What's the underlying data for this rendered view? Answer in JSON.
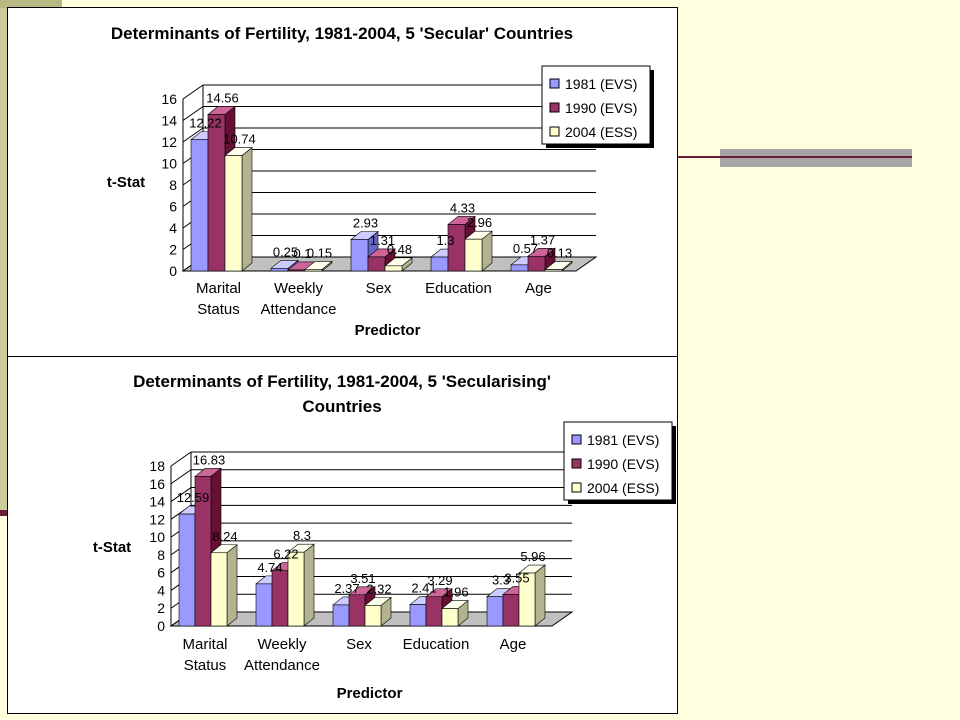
{
  "colors": {
    "series_1981": "#9999ff",
    "series_1990": "#993366",
    "series_2004": "#ffffcc",
    "gridline": "#000000",
    "wall_side": "#808080",
    "accent_line": "#6b1d3a",
    "accent_bar": "#a6a6a6",
    "left_strip": "#cccc99",
    "slide_background": "#ffffe0"
  },
  "chart_data": [
    {
      "type": "bar",
      "title": "Determinants of Fertility, 1981-2004, 5 'Secular' Countries",
      "title_lines": [
        "Determinants of Fertility, 1981-2004, 5 'Secular' Countries"
      ],
      "xlabel": "Predictor",
      "ylabel": "t-Stat",
      "categories": [
        "Marital Status",
        "Weekly Attendance",
        "Sex",
        "Education",
        "Age"
      ],
      "category_lines": [
        [
          "Marital",
          "Status"
        ],
        [
          "Weekly",
          "Attendance"
        ],
        [
          "Sex"
        ],
        [
          "Education"
        ],
        [
          "Age"
        ]
      ],
      "series": [
        {
          "name": "1981 (EVS)",
          "values": [
            12.22,
            0.25,
            2.93,
            1.3,
            0.57
          ],
          "labels": [
            "12.22",
            "0.25",
            "2.93",
            "1.3",
            "0.57"
          ]
        },
        {
          "name": "1990 (EVS)",
          "values": [
            14.56,
            0.1,
            1.31,
            4.33,
            1.37
          ],
          "labels": [
            "14.56",
            "0.1",
            "1.31",
            "4.33",
            "1.37"
          ]
        },
        {
          "name": "2004 (ESS)",
          "values": [
            10.74,
            0.15,
            0.48,
            2.96,
            0.13
          ],
          "labels": [
            "10.74",
            "0.15",
            "0.48",
            "2.96",
            "0.13"
          ]
        }
      ],
      "ylim": [
        0,
        16
      ],
      "yticks": [
        0,
        2,
        4,
        6,
        8,
        10,
        12,
        14,
        16
      ],
      "grid": true,
      "legend_position": "top-right"
    },
    {
      "type": "bar",
      "title": "Determinants of Fertility, 1981-2004, 5 'Secularising' Countries",
      "title_lines": [
        "Determinants of Fertility, 1981-2004, 5 'Secularising'",
        "Countries"
      ],
      "xlabel": "Predictor",
      "ylabel": "t-Stat",
      "categories": [
        "Marital Status",
        "Weekly Attendance",
        "Sex",
        "Education",
        "Age"
      ],
      "category_lines": [
        [
          "Marital",
          "Status"
        ],
        [
          "Weekly",
          "Attendance"
        ],
        [
          "Sex"
        ],
        [
          "Education"
        ],
        [
          "Age"
        ]
      ],
      "series": [
        {
          "name": "1981 (EVS)",
          "values": [
            12.59,
            4.74,
            2.37,
            2.41,
            3.3
          ],
          "labels": [
            "12.59",
            "4.74",
            "2.37",
            "2.41",
            "3.3"
          ]
        },
        {
          "name": "1990 (EVS)",
          "values": [
            16.83,
            6.22,
            3.51,
            3.29,
            3.55
          ],
          "labels": [
            "16.83",
            "6.22",
            "3.51",
            "3.29",
            "3.55"
          ]
        },
        {
          "name": "2004 (ESS)",
          "values": [
            8.24,
            8.3,
            2.32,
            1.96,
            5.96
          ],
          "labels": [
            "8.24",
            "8.3",
            "2.32",
            "1.96",
            "5.96"
          ]
        }
      ],
      "ylim": [
        0,
        18
      ],
      "yticks": [
        0,
        2,
        4,
        6,
        8,
        10,
        12,
        14,
        16,
        18
      ],
      "grid": true,
      "legend_position": "top-right"
    }
  ]
}
